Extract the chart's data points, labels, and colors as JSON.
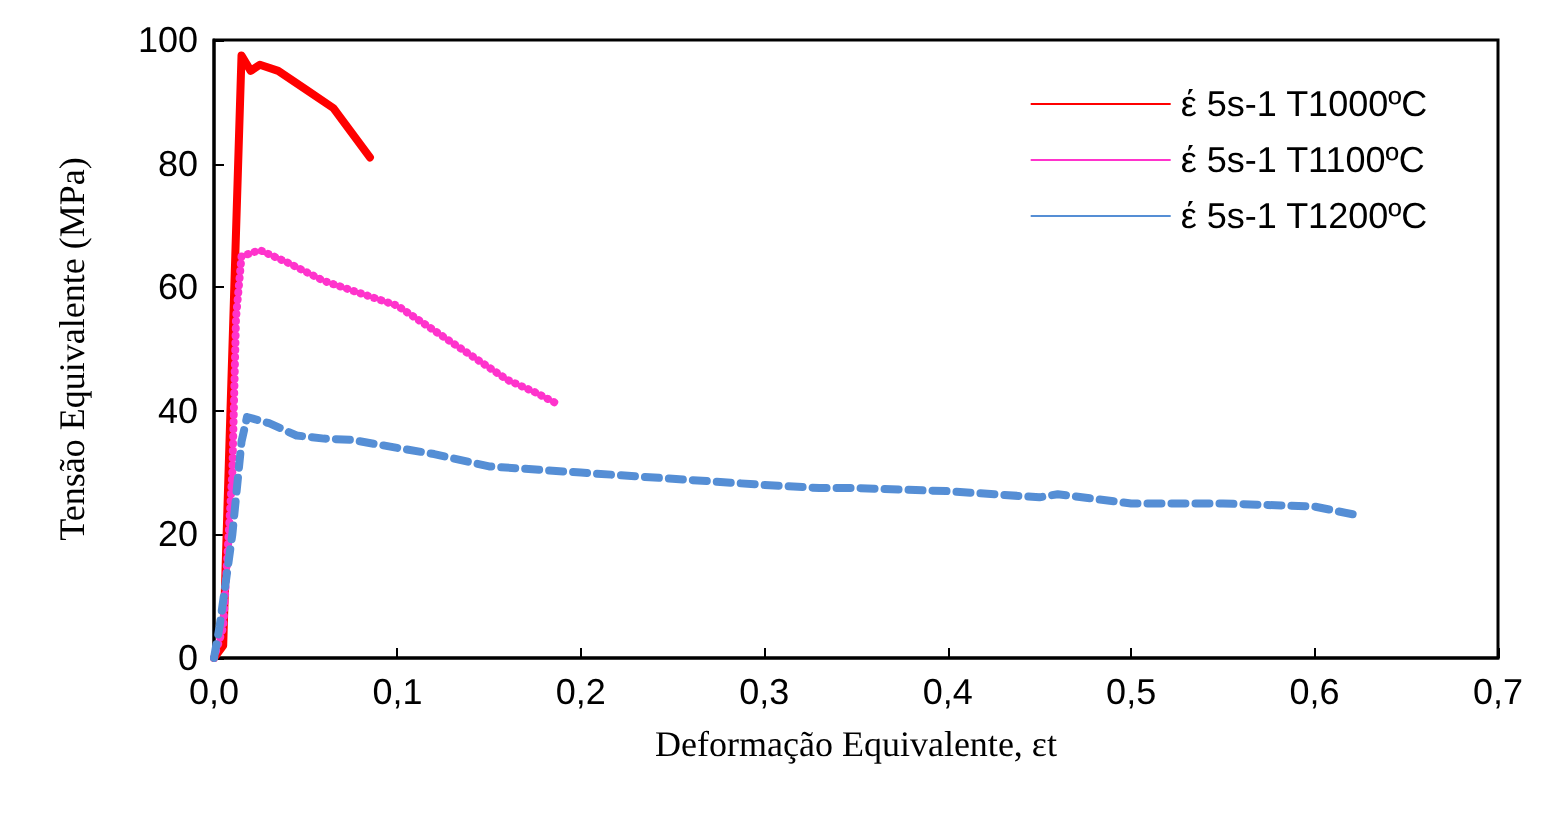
{
  "chart_data": {
    "type": "line",
    "xlabel": "Deformação Equivalente, εt",
    "ylabel": "Tensão Equivalente (MPa)",
    "xlim": [
      0,
      0.7
    ],
    "ylim": [
      0,
      100
    ],
    "xticks": [
      {
        "value": 0,
        "label": "0,0"
      },
      {
        "value": 0.1,
        "label": "0,1"
      },
      {
        "value": 0.2,
        "label": "0,2"
      },
      {
        "value": 0.3,
        "label": "0,3"
      },
      {
        "value": 0.4,
        "label": "0,4"
      },
      {
        "value": 0.5,
        "label": "0,5"
      },
      {
        "value": 0.6,
        "label": "0,6"
      },
      {
        "value": 0.7,
        "label": "0,7"
      }
    ],
    "yticks": [
      0,
      20,
      40,
      60,
      80,
      100
    ],
    "grid": false,
    "legend": "top right",
    "marker": "none",
    "series": [
      {
        "name": "έ 5s-1 T1000ºC",
        "color": "#ff0000",
        "line_style": "solid",
        "x": [
          0,
          0.005,
          0.015,
          0.02,
          0.025,
          0.035,
          0.05,
          0.065,
          0.075,
          0.085
        ],
        "values": [
          0,
          2,
          97.5,
          95,
          96,
          95,
          92,
          89,
          85,
          81
        ]
      },
      {
        "name": "έ 5s-1 T1100ºC",
        "color": "#ff33cc",
        "line_style": "dotted",
        "x": [
          0,
          0.005,
          0.01,
          0.012,
          0.015,
          0.025,
          0.04,
          0.06,
          0.08,
          0.1,
          0.12,
          0.14,
          0.16,
          0.175,
          0.188
        ],
        "values": [
          0,
          5,
          30,
          55,
          65,
          66,
          64,
          61,
          59,
          57,
          53,
          49,
          45,
          43,
          41
        ]
      },
      {
        "name": "έ 5s-1 T1200ºC",
        "color": "#558ed5",
        "line_style": "dashed",
        "x": [
          0,
          0.003,
          0.01,
          0.015,
          0.018,
          0.03,
          0.045,
          0.06,
          0.075,
          0.1,
          0.12,
          0.15,
          0.2,
          0.25,
          0.3,
          0.33,
          0.35,
          0.4,
          0.45,
          0.46,
          0.5,
          0.55,
          0.6,
          0.625
        ],
        "values": [
          0,
          5,
          20,
          35,
          39,
          38,
          36,
          35.5,
          35.3,
          34,
          33,
          31,
          30,
          29,
          28,
          27.5,
          27.5,
          27,
          26,
          26.5,
          25,
          25,
          24.5,
          23
        ]
      }
    ]
  }
}
